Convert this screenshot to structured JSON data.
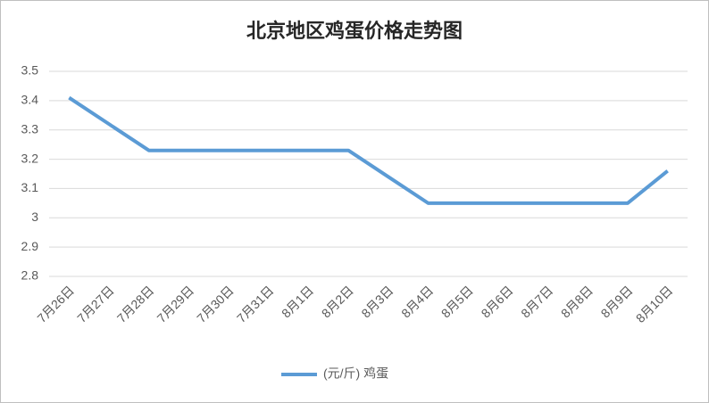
{
  "chart_data": {
    "type": "line",
    "title": "北京地区鸡蛋价格走势图",
    "categories": [
      "7月26日",
      "7月27日",
      "7月28日",
      "7月29日",
      "7月30日",
      "7月31日",
      "8月1日",
      "8月2日",
      "8月3日",
      "8月4日",
      "8月5日",
      "8月6日",
      "8月7日",
      "8月8日",
      "8月9日",
      "8月10日"
    ],
    "series": [
      {
        "name": "(元/斤) 鸡蛋",
        "color": "#5b9bd5",
        "values": [
          3.41,
          3.32,
          3.23,
          3.23,
          3.23,
          3.23,
          3.23,
          3.23,
          3.14,
          3.05,
          3.05,
          3.05,
          3.05,
          3.05,
          3.05,
          3.16
        ]
      }
    ],
    "ylim": [
      2.8,
      3.5
    ],
    "yticks": [
      2.8,
      2.9,
      3,
      3.1,
      3.2,
      3.3,
      3.4,
      3.5
    ],
    "grid": true,
    "legend": "bottom"
  }
}
